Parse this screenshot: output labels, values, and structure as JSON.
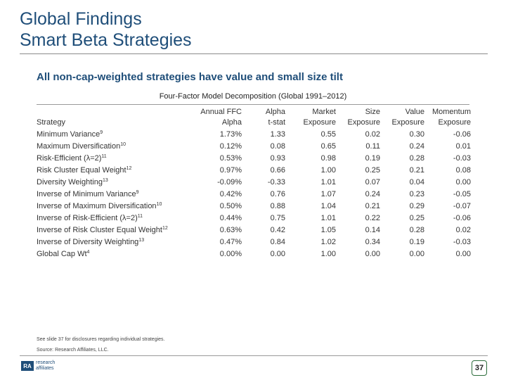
{
  "slide": {
    "title_line1": "Global Findings",
    "title_line2": "Smart Beta Strategies",
    "subtitle": "All non-cap-weighted strategies have value and small size tilt",
    "table_caption": "Four-Factor Model Decomposition (Global 1991–2012)"
  },
  "table": {
    "header_top": [
      "",
      "Annual FFC",
      "Alpha",
      "Market",
      "Size",
      "Value",
      "Momentum"
    ],
    "header_bottom": [
      "Strategy",
      "Alpha",
      "t-stat",
      "Exposure",
      "Exposure",
      "Exposure",
      "Exposure"
    ],
    "rows": [
      {
        "name": "Minimum Variance",
        "sup": "9",
        "alpha": "1.73%",
        "tstat": "1.33",
        "market": "0.55",
        "size": "0.02",
        "value": "0.30",
        "momentum": "-0.06"
      },
      {
        "name": "Maximum Diversification",
        "sup": "10",
        "alpha": "0.12%",
        "tstat": "0.08",
        "market": "0.65",
        "size": "0.11",
        "value": "0.24",
        "momentum": "0.01"
      },
      {
        "name": "Risk-Efficient (λ=2)",
        "sup": "11",
        "alpha": "0.53%",
        "tstat": "0.93",
        "market": "0.98",
        "size": "0.19",
        "value": "0.28",
        "momentum": "-0.03"
      },
      {
        "name": "Risk Cluster Equal Weight",
        "sup": "12",
        "alpha": "0.97%",
        "tstat": "0.66",
        "market": "1.00",
        "size": "0.25",
        "value": "0.21",
        "momentum": "0.08"
      },
      {
        "name": "Diversity Weighting",
        "sup": "13",
        "alpha": "-0.09%",
        "tstat": "-0.33",
        "market": "1.01",
        "size": "0.07",
        "value": "0.04",
        "momentum": "0.00"
      },
      {
        "name": "Inverse of Minimum Variance",
        "sup": "9",
        "alpha": "0.42%",
        "tstat": "0.76",
        "market": "1.07",
        "size": "0.24",
        "value": "0.23",
        "momentum": "-0.05"
      },
      {
        "name": "Inverse of Maximum Diversification",
        "sup": "10",
        "alpha": "0.50%",
        "tstat": "0.88",
        "market": "1.04",
        "size": "0.21",
        "value": "0.29",
        "momentum": "-0.07"
      },
      {
        "name": "Inverse of Risk-Efficient (λ=2)",
        "sup": "11",
        "alpha": "0.44%",
        "tstat": "0.75",
        "market": "1.01",
        "size": "0.22",
        "value": "0.25",
        "momentum": "-0.06"
      },
      {
        "name": "Inverse of Risk Cluster Equal Weight",
        "sup": "12",
        "alpha": "0.63%",
        "tstat": "0.42",
        "market": "1.05",
        "size": "0.14",
        "value": "0.28",
        "momentum": "0.02"
      },
      {
        "name": "Inverse of Diversity Weighting",
        "sup": "13",
        "alpha": "0.47%",
        "tstat": "0.84",
        "market": "1.02",
        "size": "0.34",
        "value": "0.19",
        "momentum": "-0.03"
      },
      {
        "name": "Global Cap Wt",
        "sup": "4",
        "alpha": "0.00%",
        "tstat": "0.00",
        "market": "1.00",
        "size": "0.00",
        "value": "0.00",
        "momentum": "0.00"
      }
    ]
  },
  "footer": {
    "disclosure": "See slide 37 for disclosures regarding individual strategies.",
    "source": "Source: Research Affiliates, LLC.",
    "logo_mark": "RA",
    "logo_line1": "research",
    "logo_line2": "affiliates",
    "page_number": "37"
  },
  "colors": {
    "title": "#1f4e79",
    "rule": "#8a8a8a",
    "page_badge_border": "#2d6e3c"
  }
}
